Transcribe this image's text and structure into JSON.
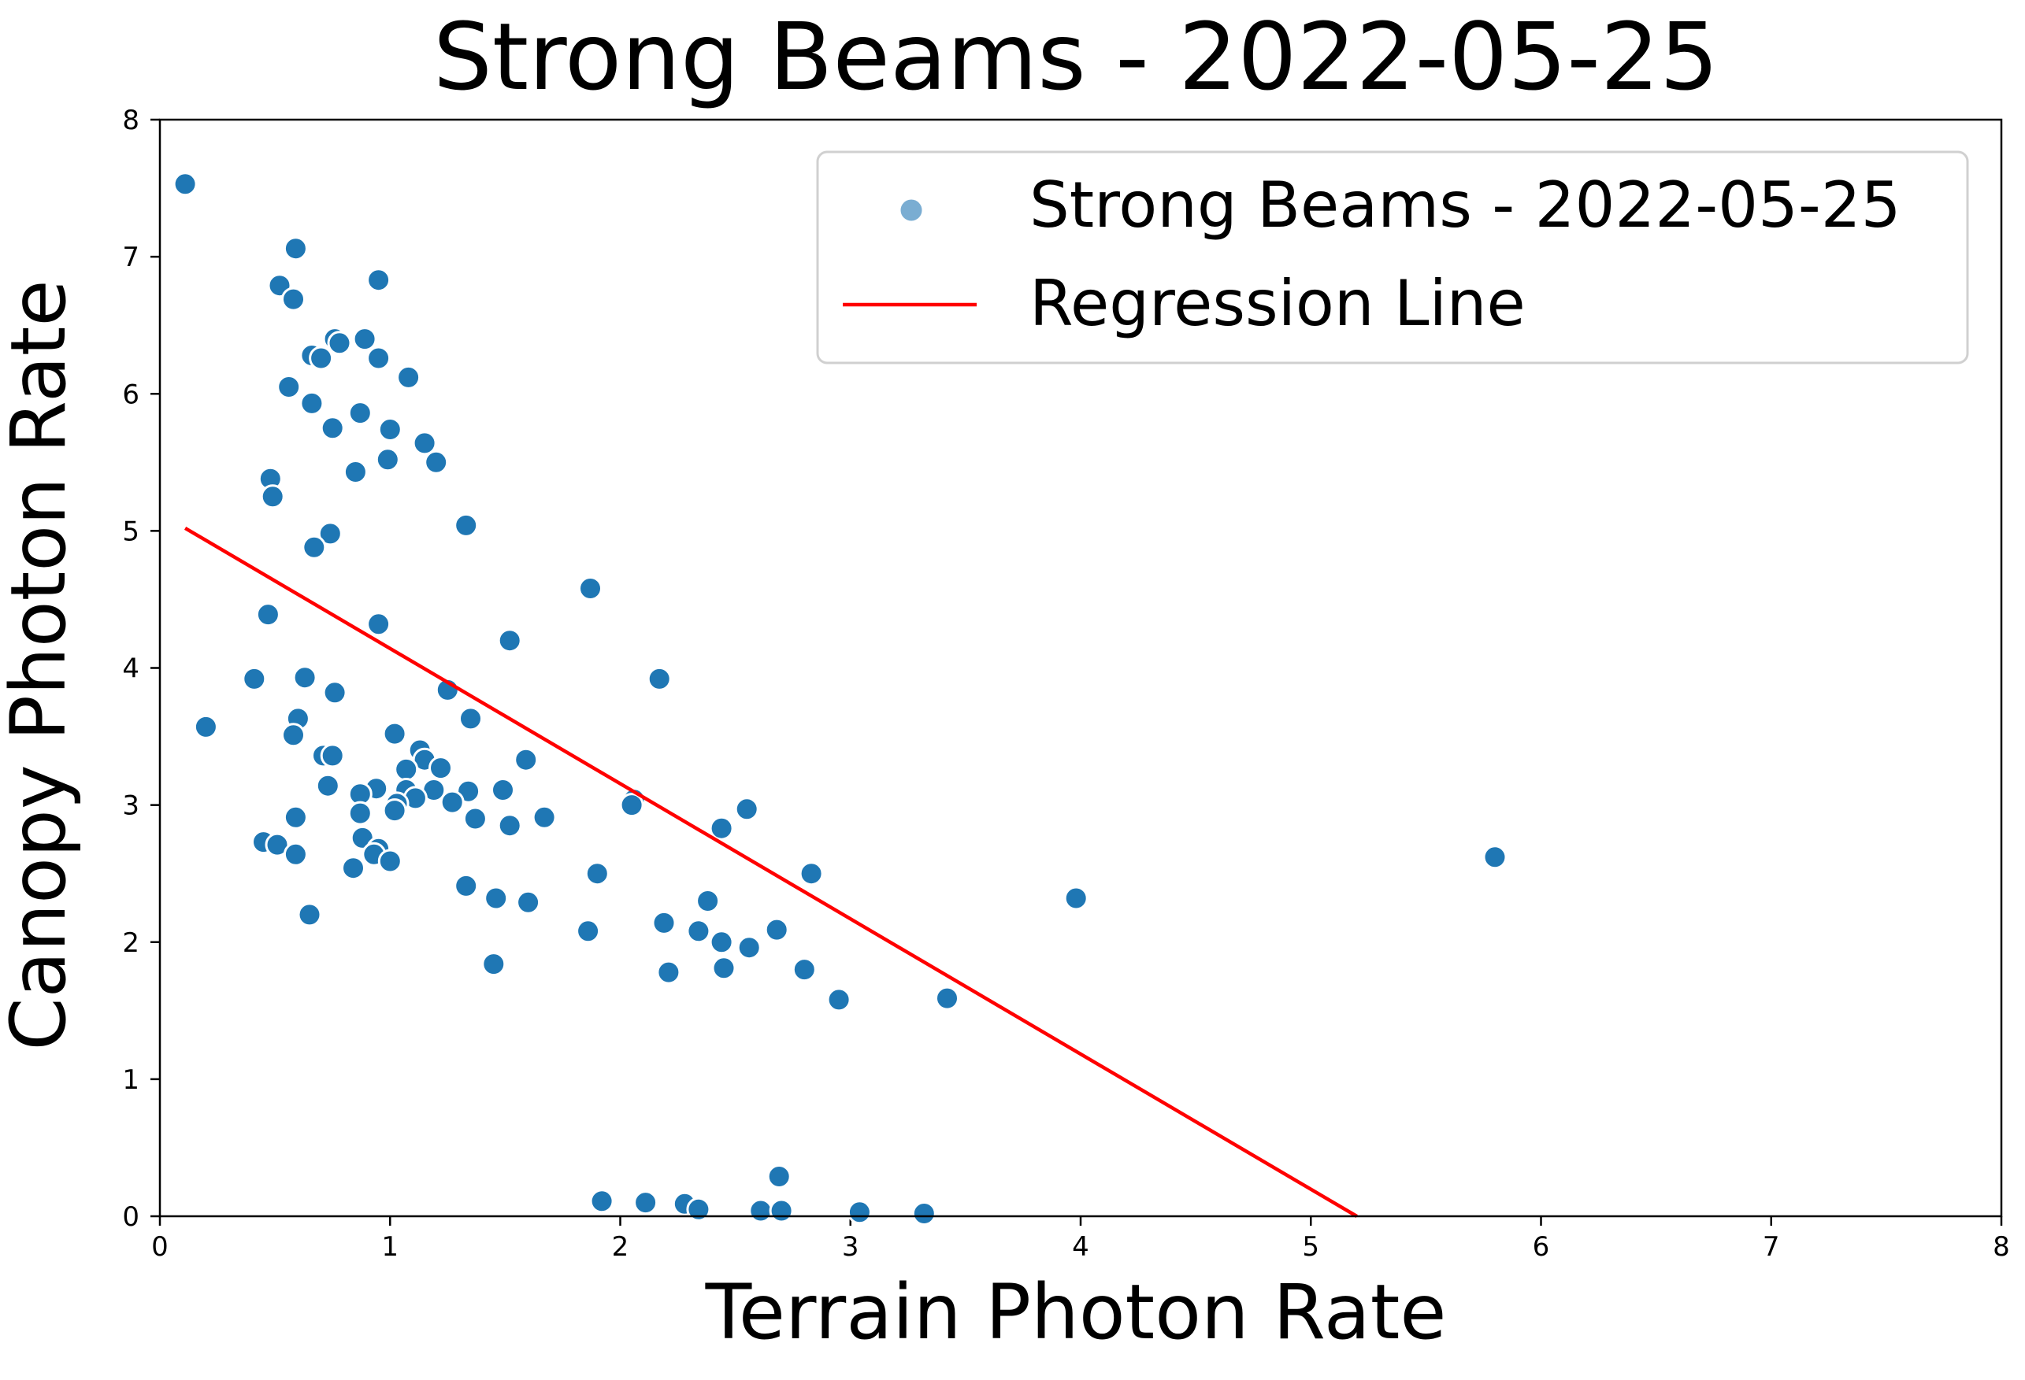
{
  "chart_data": {
    "type": "scatter",
    "title": "Strong Beams - 2022-05-25",
    "xlabel": "Terrain Photon Rate",
    "ylabel": "Canopy Photon Rate",
    "xlim": [
      0,
      8
    ],
    "ylim": [
      0,
      8
    ],
    "xticks": [
      "0",
      "1",
      "2",
      "3",
      "4",
      "5",
      "6",
      "7",
      "8"
    ],
    "yticks": [
      "0",
      "1",
      "2",
      "3",
      "4",
      "5",
      "6",
      "7",
      "8"
    ],
    "grid": false,
    "legend_position": "top-right",
    "colors": {
      "points": "#1f77b4",
      "point_edge": "#ffffff",
      "regression": "#ff0000",
      "legend_marker": "#7aadd2"
    },
    "legend": [
      {
        "label": "Strong Beams - 2022-05-25",
        "kind": "marker"
      },
      {
        "label": "Regression Line",
        "kind": "line"
      }
    ],
    "series": [
      {
        "name": "Strong Beams - 2022-05-25",
        "points": [
          [
            0.11,
            7.53
          ],
          [
            0.59,
            7.06
          ],
          [
            0.52,
            6.79
          ],
          [
            0.95,
            6.83
          ],
          [
            0.58,
            6.69
          ],
          [
            0.76,
            6.4
          ],
          [
            0.89,
            6.4
          ],
          [
            0.78,
            6.37
          ],
          [
            0.66,
            6.28
          ],
          [
            0.7,
            6.26
          ],
          [
            0.95,
            6.26
          ],
          [
            1.08,
            6.12
          ],
          [
            0.56,
            6.05
          ],
          [
            0.66,
            5.93
          ],
          [
            0.87,
            5.86
          ],
          [
            0.75,
            5.75
          ],
          [
            1.0,
            5.74
          ],
          [
            1.15,
            5.64
          ],
          [
            0.99,
            5.52
          ],
          [
            1.2,
            5.5
          ],
          [
            0.85,
            5.43
          ],
          [
            0.48,
            5.38
          ],
          [
            0.49,
            5.25
          ],
          [
            1.33,
            5.04
          ],
          [
            0.74,
            4.98
          ],
          [
            0.67,
            4.88
          ],
          [
            1.87,
            4.58
          ],
          [
            0.47,
            4.39
          ],
          [
            0.95,
            4.32
          ],
          [
            1.52,
            4.2
          ],
          [
            0.41,
            3.92
          ],
          [
            0.63,
            3.93
          ],
          [
            2.17,
            3.92
          ],
          [
            1.25,
            3.84
          ],
          [
            0.76,
            3.82
          ],
          [
            0.6,
            3.63
          ],
          [
            1.35,
            3.63
          ],
          [
            0.2,
            3.57
          ],
          [
            0.58,
            3.51
          ],
          [
            1.02,
            3.52
          ],
          [
            1.13,
            3.4
          ],
          [
            0.71,
            3.36
          ],
          [
            0.75,
            3.36
          ],
          [
            1.15,
            3.33
          ],
          [
            1.59,
            3.33
          ],
          [
            1.22,
            3.27
          ],
          [
            1.07,
            3.26
          ],
          [
            0.73,
            3.14
          ],
          [
            0.94,
            3.12
          ],
          [
            1.07,
            3.11
          ],
          [
            1.19,
            3.11
          ],
          [
            1.34,
            3.1
          ],
          [
            1.49,
            3.11
          ],
          [
            0.87,
            3.08
          ],
          [
            1.11,
            3.05
          ],
          [
            2.06,
            3.04
          ],
          [
            1.27,
            3.02
          ],
          [
            2.05,
            3.0
          ],
          [
            1.03,
            3.01
          ],
          [
            1.02,
            2.96
          ],
          [
            2.55,
            2.97
          ],
          [
            0.87,
            2.94
          ],
          [
            0.59,
            2.91
          ],
          [
            1.67,
            2.91
          ],
          [
            1.37,
            2.9
          ],
          [
            1.52,
            2.85
          ],
          [
            2.44,
            2.83
          ],
          [
            0.88,
            2.76
          ],
          [
            0.45,
            2.73
          ],
          [
            0.51,
            2.71
          ],
          [
            0.95,
            2.68
          ],
          [
            0.93,
            2.64
          ],
          [
            0.59,
            2.64
          ],
          [
            1.0,
            2.59
          ],
          [
            0.84,
            2.54
          ],
          [
            5.8,
            2.62
          ],
          [
            1.9,
            2.5
          ],
          [
            2.83,
            2.5
          ],
          [
            1.33,
            2.41
          ],
          [
            1.46,
            2.32
          ],
          [
            2.38,
            2.3
          ],
          [
            3.98,
            2.32
          ],
          [
            1.6,
            2.29
          ],
          [
            0.65,
            2.2
          ],
          [
            2.19,
            2.14
          ],
          [
            1.86,
            2.08
          ],
          [
            2.34,
            2.08
          ],
          [
            2.68,
            2.09
          ],
          [
            2.44,
            2.0
          ],
          [
            2.56,
            1.96
          ],
          [
            1.45,
            1.84
          ],
          [
            2.45,
            1.81
          ],
          [
            2.21,
            1.78
          ],
          [
            2.8,
            1.8
          ],
          [
            2.95,
            1.58
          ],
          [
            3.42,
            1.59
          ],
          [
            2.69,
            0.29
          ],
          [
            1.92,
            0.11
          ],
          [
            2.11,
            0.1
          ],
          [
            2.28,
            0.09
          ],
          [
            2.34,
            0.05
          ],
          [
            2.61,
            0.04
          ],
          [
            2.7,
            0.04
          ],
          [
            3.04,
            0.03
          ],
          [
            3.32,
            0.02
          ]
        ]
      },
      {
        "name": "Regression Line",
        "line": [
          [
            0.11,
            5.02
          ],
          [
            5.2,
            0.0
          ]
        ]
      }
    ]
  }
}
